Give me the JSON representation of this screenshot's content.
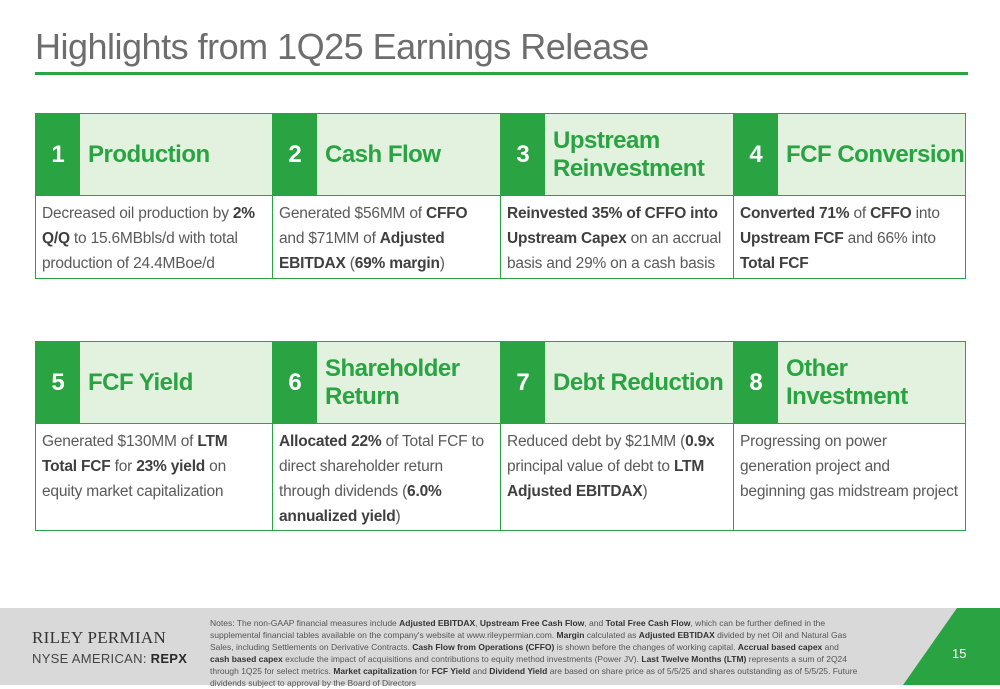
{
  "title": "Highlights from 1Q25 Earnings Release",
  "row1": [
    {
      "num": "1",
      "label": "Production",
      "body": [
        [
          "Decreased oil production by ",
          false
        ],
        [
          "2% Q/Q",
          true
        ],
        [
          " to 15.6MBbls/d with total production of 24.4MBoe/d",
          false
        ]
      ]
    },
    {
      "num": "2",
      "label": "Cash Flow",
      "body": [
        [
          "Generated $56MM of ",
          false
        ],
        [
          "CFFO",
          true
        ],
        [
          " and $71MM of ",
          false
        ],
        [
          "Adjusted EBITDAX",
          true
        ],
        [
          " (",
          false
        ],
        [
          "69% margin",
          true
        ],
        [
          ")",
          false
        ]
      ]
    },
    {
      "num": "3",
      "label": "Upstream Reinvestment",
      "body": [
        [
          "Reinvested 35% of CFFO into Upstream Capex",
          true
        ],
        [
          " on an accrual basis and 29% on a cash basis",
          false
        ]
      ]
    },
    {
      "num": "4",
      "label": "FCF Conversion",
      "body": [
        [
          "Converted 71%",
          true
        ],
        [
          " of ",
          false
        ],
        [
          "CFFO",
          true
        ],
        [
          " into ",
          false
        ],
        [
          "Upstream FCF",
          true
        ],
        [
          " and 66% into ",
          false
        ],
        [
          "Total FCF",
          true
        ]
      ]
    }
  ],
  "row2": [
    {
      "num": "5",
      "label": "FCF Yield",
      "body": [
        [
          "Generated $130MM of ",
          false
        ],
        [
          "LTM Total FCF",
          true
        ],
        [
          " for ",
          false
        ],
        [
          "23% yield",
          true
        ],
        [
          " on equity market capitalization",
          false
        ]
      ]
    },
    {
      "num": "6",
      "label": "Shareholder Return",
      "body": [
        [
          "Allocated 22%",
          true
        ],
        [
          " of Total FCF to direct shareholder return through dividends (",
          false
        ],
        [
          "6.0% annualized yield",
          true
        ],
        [
          ")",
          false
        ]
      ]
    },
    {
      "num": "7",
      "label": "Debt Reduction",
      "body": [
        [
          "Reduced debt by $21MM (",
          false
        ],
        [
          "0.9x",
          true
        ],
        [
          " principal value of debt to ",
          false
        ],
        [
          "LTM Adjusted EBITDAX",
          true
        ],
        [
          ")",
          false
        ]
      ]
    },
    {
      "num": "8",
      "label": "Other Investment",
      "body": [
        [
          "Progressing on power generation project and beginning gas midstream project",
          false
        ]
      ]
    }
  ],
  "footer": {
    "company": "RILEY PERMIAN",
    "exchange": "NYSE AMERICAN: ",
    "ticker": "REPX",
    "page": "15",
    "notes": [
      [
        "Notes: The non-GAAP financial measures include ",
        false
      ],
      [
        "Adjusted EBITDAX",
        true
      ],
      [
        ", ",
        false
      ],
      [
        "Upstream Free Cash Flow",
        true
      ],
      [
        ", and ",
        false
      ],
      [
        "Total Free Cash Flow",
        true
      ],
      [
        ", which can be further defined in the supplemental financial tables available on the company's website at www.rileypermian.com. ",
        false
      ],
      [
        "Margin",
        true
      ],
      [
        " calculated as ",
        false
      ],
      [
        "Adjusted EBTIDAX",
        true
      ],
      [
        " divided by net Oil and Natural Gas Sales, including Settlements on Derivative Contracts. ",
        false
      ],
      [
        "Cash Flow from Operations (CFFO)",
        true
      ],
      [
        " is shown before the changes of working capital. ",
        false
      ],
      [
        "Accrual based capex",
        true
      ],
      [
        " and ",
        false
      ],
      [
        "cash based capex",
        true
      ],
      [
        " exclude the impact of acquisitions and contributions to equity method investments (Power JV). ",
        false
      ],
      [
        "Last Twelve Months (LTM)",
        true
      ],
      [
        " represents a sum of 2Q24 through 1Q25 for select metrics. ",
        false
      ],
      [
        "Market capitalization",
        true
      ],
      [
        " for ",
        false
      ],
      [
        "FCF Yield",
        true
      ],
      [
        " and ",
        false
      ],
      [
        "Dividend Yield",
        true
      ],
      [
        " are based on share price as of 5/5/25 and shares outstanding as of 5/5/25. Future dividends subject to approval by the Board of Directors",
        false
      ]
    ]
  },
  "colors": {
    "accent": "#2aa343",
    "header_fill": "#e2f2df",
    "footer_bg": "#d9d9d9"
  }
}
